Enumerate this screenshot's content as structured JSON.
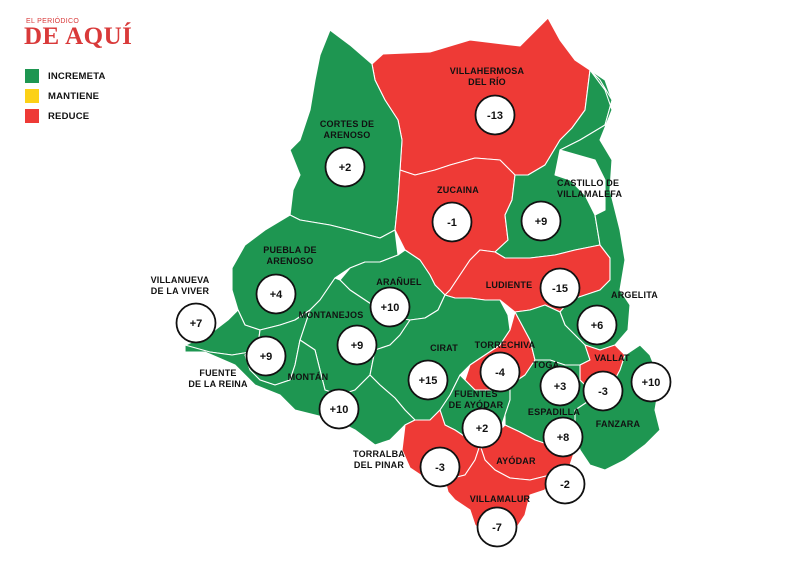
{
  "logo": {
    "small_text": "EL PERIÓDICO",
    "big_text": "DE AQUÍ"
  },
  "legend": [
    {
      "label": "INCREMETA",
      "color": "#1e9651"
    },
    {
      "label": "MANTIENE",
      "color": "#fcd116"
    },
    {
      "label": "REDUCE",
      "color": "#ee3a36"
    }
  ],
  "colors": {
    "increase": "#1e9651",
    "reduce": "#ee3a36",
    "border": "#ffffff",
    "badge_fill": "#ffffff",
    "badge_stroke": "#111111"
  },
  "municipalities": [
    {
      "id": "villahermosa",
      "name": [
        "VILLAHERMOSA",
        "DEL RÍO"
      ],
      "value": "-13",
      "status": "reduce"
    },
    {
      "id": "cortes",
      "name": [
        "CORTES DE",
        "ARENOSO"
      ],
      "value": "+2",
      "status": "increase"
    },
    {
      "id": "zucaina",
      "name": [
        "ZUCAINA"
      ],
      "value": "-1",
      "status": "reduce"
    },
    {
      "id": "castillo",
      "name": [
        "CASTILLO DE",
        "VILLAMALEFA"
      ],
      "value": "+9",
      "status": "increase"
    },
    {
      "id": "puebla",
      "name": [
        "PUEBLA DE",
        "ARENOSO"
      ],
      "value": "+4",
      "status": "increase"
    },
    {
      "id": "aranuel",
      "name": [
        "ARAÑUEL"
      ],
      "value": "+10",
      "status": "increase"
    },
    {
      "id": "ludiente",
      "name": [
        "LUDIENTE"
      ],
      "value": "-15",
      "status": "reduce"
    },
    {
      "id": "argelita",
      "name": [
        "ARGELITA"
      ],
      "value": "+6",
      "status": "increase"
    },
    {
      "id": "villanueva",
      "name": [
        "VILLANUEVA",
        "DE LA VIVER"
      ],
      "value": "+7",
      "status": "increase"
    },
    {
      "id": "montanejos",
      "name": [
        "MONTANEJOS"
      ],
      "value": "+9",
      "status": "increase"
    },
    {
      "id": "fuentereina",
      "name": [
        "FUENTE",
        "DE LA REINA"
      ],
      "value": "+9",
      "status": "increase"
    },
    {
      "id": "cirat",
      "name": [
        "CIRAT"
      ],
      "value": "+15",
      "status": "increase"
    },
    {
      "id": "torrechiva",
      "name": [
        "TORRECHIVA"
      ],
      "value": "-4",
      "status": "reduce"
    },
    {
      "id": "toga",
      "name": [
        "TOGA"
      ],
      "value": "+3",
      "status": "increase"
    },
    {
      "id": "vallat",
      "name": [
        "VALLAT"
      ],
      "value": "-3",
      "status": "reduce"
    },
    {
      "id": "fanzara",
      "name": [
        "FANZARA"
      ],
      "value": "+10",
      "status": "increase"
    },
    {
      "id": "montan",
      "name": [
        "MONTÁN"
      ],
      "value": "+10",
      "status": "increase"
    },
    {
      "id": "fuentesayodar",
      "name": [
        "FUENTES",
        "DE AYÓDAR"
      ],
      "value": "+2",
      "status": "increase"
    },
    {
      "id": "espadilla",
      "name": [
        "ESPADILLA"
      ],
      "value": "+8",
      "status": "increase"
    },
    {
      "id": "torralba",
      "name": [
        "TORRALBA",
        "DEL PINAR"
      ],
      "value": "-3",
      "status": "reduce"
    },
    {
      "id": "ayodar",
      "name": [
        "AYÓDAR"
      ],
      "value": "-2",
      "status": "reduce"
    },
    {
      "id": "villamalur",
      "name": [
        "VILLAMALUR"
      ],
      "value": "-7",
      "status": "reduce"
    }
  ]
}
